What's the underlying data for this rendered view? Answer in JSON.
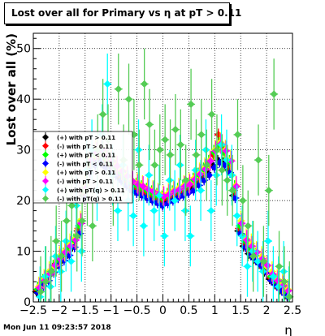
{
  "title_text": "Lost over all for Primary vs   η at pT > 0.11",
  "timestamp": "Mon Jun 11 09:23:57 2018",
  "chart_data": {
    "type": "scatter",
    "title": "Lost over all for Primary vs   η at pT > 0.11",
    "xlabel": "η",
    "ylabel": "Lost over all (%)",
    "xlim": [
      -2.5,
      2.5
    ],
    "ylim": [
      0,
      53
    ],
    "x_ticks": [
      -2.5,
      -2,
      -1.5,
      -1,
      -0.5,
      0,
      0.5,
      1,
      1.5,
      2,
      2.5
    ],
    "x_tick_labels": [
      "−2.5",
      "−2",
      "−1.5",
      "−1",
      "−0.5",
      "0",
      "0.5",
      "1",
      "1.5",
      "2",
      "2.5"
    ],
    "y_ticks": [
      0,
      10,
      20,
      30,
      40,
      50
    ],
    "y_tick_labels": [
      "0",
      "10",
      "20",
      "30",
      "40",
      "50"
    ],
    "grid": true,
    "legend_position": "left",
    "x": [
      -2.4,
      -2.3,
      -2.2,
      -2.1,
      -2.0,
      -1.9,
      -1.8,
      -1.7,
      -1.6,
      -1.5,
      -1.4,
      -1.3,
      -1.2,
      -1.1,
      -1.0,
      -0.9,
      -0.8,
      -0.7,
      -0.6,
      -0.5,
      -0.4,
      -0.3,
      -0.2,
      -0.1,
      0.0,
      0.1,
      0.2,
      0.3,
      0.4,
      0.5,
      0.6,
      0.7,
      0.8,
      0.9,
      1.0,
      1.1,
      1.2,
      1.3,
      1.4,
      1.5,
      1.6,
      1.7,
      1.8,
      1.9,
      2.0,
      2.1,
      2.2,
      2.3,
      2.4
    ],
    "series": [
      {
        "name": "(+) with pT > 0.11",
        "color": "#000000",
        "yerr": 1.0,
        "values": [
          2.0,
          3.5,
          4.5,
          6.0,
          7.5,
          8.5,
          9.5,
          11.0,
          14.0,
          21.0,
          26.0,
          27.5,
          28.0,
          27.0,
          26.5,
          25.5,
          24.5,
          23.5,
          22.5,
          22.0,
          21.5,
          21.0,
          20.5,
          20.0,
          19.5,
          20.0,
          20.5,
          21.0,
          21.5,
          22.0,
          22.5,
          23.5,
          24.5,
          25.5,
          27.0,
          28.0,
          27.5,
          26.0,
          21.0,
          14.0,
          11.0,
          9.5,
          8.5,
          7.5,
          6.0,
          4.5,
          3.5,
          2.5,
          1.5
        ]
      },
      {
        "name": "(-) with pT > 0.11",
        "color": "#ff0000",
        "yerr": 1.2,
        "values": [
          2.2,
          3.8,
          4.8,
          6.5,
          7.8,
          9.0,
          10.0,
          11.5,
          14.5,
          21.5,
          27.0,
          28.5,
          29.0,
          28.0,
          27.0,
          26.0,
          25.0,
          24.0,
          23.0,
          22.5,
          22.0,
          21.5,
          21.0,
          20.5,
          20.0,
          20.5,
          21.0,
          21.5,
          22.0,
          22.5,
          23.5,
          24.5,
          25.5,
          27.0,
          29.0,
          33.0,
          30.0,
          27.0,
          22.0,
          14.5,
          11.5,
          10.0,
          9.0,
          7.8,
          6.5,
          4.8,
          3.8,
          2.8,
          1.8
        ]
      },
      {
        "name": "(+) with pT < 0.11",
        "color": "#00ff00",
        "yerr": 1.5,
        "values": [
          2.5,
          4.0,
          5.0,
          6.8,
          8.0,
          9.2,
          10.5,
          12.0,
          15.0,
          22.0,
          27.5,
          29.0,
          29.5,
          28.5,
          27.5,
          26.5,
          25.5,
          24.5,
          23.5,
          23.0,
          22.5,
          22.0,
          21.5,
          21.0,
          20.5,
          21.0,
          21.5,
          22.0,
          22.5,
          23.0,
          24.0,
          25.0,
          26.0,
          27.5,
          29.5,
          31.0,
          29.5,
          27.5,
          22.5,
          15.0,
          12.0,
          10.5,
          9.2,
          8.0,
          6.8,
          5.0,
          4.0,
          3.0,
          2.0
        ]
      },
      {
        "name": "(-) with pT < 0.11",
        "color": "#0000ff",
        "yerr": 1.0,
        "values": [
          1.8,
          3.2,
          4.2,
          5.8,
          7.2,
          8.2,
          9.2,
          10.8,
          13.5,
          20.5,
          25.5,
          27.0,
          27.5,
          26.5,
          26.0,
          25.0,
          24.0,
          23.0,
          22.0,
          21.5,
          21.0,
          20.5,
          20.0,
          19.5,
          19.0,
          19.5,
          20.0,
          20.5,
          21.0,
          21.5,
          22.0,
          23.0,
          24.0,
          25.0,
          26.5,
          27.5,
          27.0,
          25.5,
          20.5,
          13.5,
          10.8,
          9.2,
          8.2,
          7.2,
          5.8,
          4.2,
          3.2,
          2.2,
          1.2
        ]
      },
      {
        "name": "(+) with pT > 0.11",
        "color": "#ffff00",
        "yerr": 2.0,
        "values": [
          3.0,
          4.5,
          6.0,
          7.0,
          9.0,
          10.0,
          11.5,
          12.5,
          16.0,
          23.0,
          28.5,
          30.0,
          30.5,
          29.0,
          28.0,
          27.0,
          26.0,
          25.0,
          24.0,
          23.5,
          23.0,
          22.5,
          22.0,
          21.5,
          21.0,
          21.5,
          22.0,
          22.5,
          23.0,
          23.5,
          24.5,
          25.5,
          26.5,
          28.0,
          30.0,
          31.5,
          30.0,
          28.0,
          23.0,
          16.0,
          12.5,
          11.5,
          10.0,
          9.0,
          7.0,
          6.0,
          4.5,
          3.5,
          2.5
        ]
      },
      {
        "name": "(-) with pT > 0.11",
        "color": "#ff00ff",
        "yerr": 2.0,
        "values": [
          2.8,
          4.2,
          5.5,
          7.2,
          8.5,
          9.8,
          11.0,
          12.2,
          15.5,
          22.5,
          28.0,
          29.5,
          30.0,
          28.8,
          27.8,
          26.8,
          25.8,
          24.8,
          23.8,
          23.2,
          22.8,
          22.2,
          21.8,
          21.2,
          20.8,
          21.2,
          21.8,
          22.2,
          22.8,
          23.2,
          24.2,
          25.2,
          26.2,
          27.8,
          29.8,
          31.2,
          29.8,
          27.8,
          22.8,
          15.5,
          12.2,
          11.0,
          9.8,
          8.5,
          7.2,
          5.5,
          4.2,
          3.2,
          2.2
        ]
      },
      {
        "name": "(+) with pT(q) > 0.11",
        "color": "#00ffff",
        "yerr": 6.0,
        "values": [
          1.0,
          5.0,
          3.0,
          9.0,
          6.0,
          12.0,
          8.0,
          19.0,
          10.0,
          26.0,
          30.0,
          22.0,
          33.0,
          43.0,
          25.0,
          18.0,
          27.0,
          20.0,
          17.0,
          30.0,
          15.0,
          25.0,
          18.0,
          21.0,
          13.0,
          24.0,
          20.0,
          27.0,
          18.0,
          13.0,
          26.0,
          22.0,
          30.0,
          18.0,
          25.0,
          31.0,
          28.0,
          25.0,
          17.0,
          13.0,
          7.0,
          10.0,
          8.0,
          6.0,
          12.0,
          5.0,
          3.0,
          6.0,
          1.0
        ]
      },
      {
        "name": "(-) with pT(q) > 0.11",
        "color": "#55cc55",
        "yerr": 7.0,
        "values": [
          2.0,
          4.0,
          6.0,
          12.0,
          9.0,
          16.0,
          19.0,
          13.0,
          16.0,
          22.0,
          15.0,
          30.0,
          37.0,
          32.0,
          22.0,
          42.0,
          28.0,
          40.0,
          33.0,
          27.0,
          43.0,
          35.0,
          27.0,
          30.0,
          32.0,
          29.0,
          34.0,
          31.0,
          24.0,
          39.0,
          29.0,
          33.0,
          27.0,
          37.0,
          30.0,
          26.0,
          24.0,
          22.0,
          33.0,
          20.0,
          15.0,
          9.0,
          28.0,
          8.0,
          22.0,
          41.0,
          7.0,
          4.0,
          1.0
        ]
      }
    ]
  }
}
